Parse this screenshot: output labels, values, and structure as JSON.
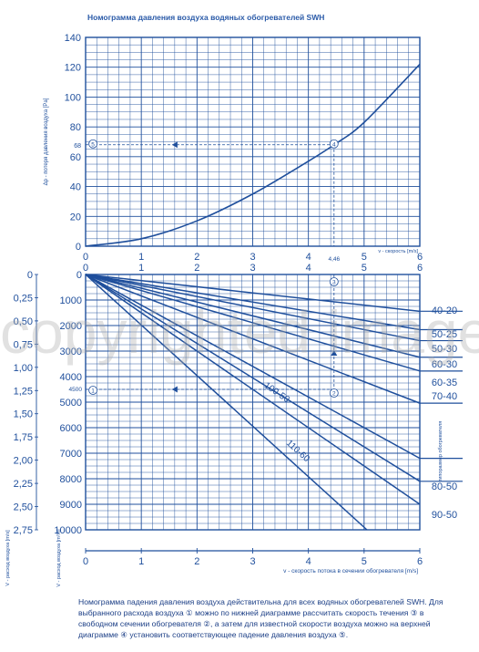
{
  "title": "Номограмма давления воздуха водяных обогревателей SWH",
  "watermark": "copyrighted image",
  "note": "Номограмма падения давления воздуха действительна для всех водяных обогревателей SWH. Для выбранного расхода воздуха ① можно по нижней диаграмме рассчитать скорость течения ③ в свободном сечении обогревателя ②, а затем для известной скорости воздуха можно на верхней диаграмме ④ установить соответствующее падение давления воздуха ⑤.",
  "colors": {
    "line": "#1f4f9c",
    "grid": "#1f4f9c",
    "text": "#1f4f9c",
    "watermark": "#aaaaaa"
  },
  "chart_data": [
    {
      "type": "line",
      "title": "Номограмма давления воздуха водяных обогревателей SWH",
      "xlabel": "v - скорость [m/s]",
      "ylabel": "Δp - потеря давления воздуха [Pa]",
      "xlim": [
        0,
        6
      ],
      "ylim": [
        0,
        140
      ],
      "x_ticks": [
        "0",
        "1",
        "2",
        "3",
        "4",
        "5",
        "6"
      ],
      "y_ticks": [
        "0",
        "20",
        "40",
        "60",
        "80",
        "100",
        "120",
        "140"
      ],
      "grid": true,
      "series": [
        {
          "x": [
            0,
            1,
            2,
            3,
            4,
            4.46,
            5,
            6
          ],
          "y": [
            0,
            5,
            17,
            35,
            57,
            68,
            83,
            122
          ]
        }
      ],
      "annotations": [
        {
          "text": "68",
          "kind": "y-reading",
          "value": 68
        },
        {
          "text": "4,46",
          "kind": "x-reading",
          "value": 4.46
        },
        {
          "text": "4",
          "kind": "marker",
          "x": 4.46,
          "y": 68
        },
        {
          "text": "5",
          "kind": "marker",
          "x": 0.1,
          "y": 68
        }
      ]
    },
    {
      "type": "line",
      "xlabel": "v - скорость потока в сечении обогревателя [m/s]",
      "ylabel": "V - расход воздуха [m³/h]",
      "ylabel2": "V - расход воздуха [m/s]",
      "xlim": [
        0,
        6
      ],
      "ylim": [
        0,
        10000
      ],
      "y_inverted": true,
      "x_ticks": [
        "0",
        "1",
        "2",
        "3",
        "4",
        "5",
        "6"
      ],
      "y_ticks": [
        "0",
        "1000",
        "2000",
        "3000",
        "4000",
        "5000",
        "6000",
        "7000",
        "8000",
        "9000",
        "10000"
      ],
      "y2_ticks": [
        "0",
        "0,25",
        "0,50",
        "0,75",
        "1,00",
        "1,25",
        "1,50",
        "1,75",
        "2,00",
        "2,25",
        "2,50",
        "2,75"
      ],
      "right_axis_label": "типоразмер обогревателя",
      "grid": true,
      "series": [
        {
          "name": "40-20",
          "x": [
            0,
            6
          ],
          "y": [
            0,
            1440
          ]
        },
        {
          "name": "50-25",
          "x": [
            0,
            6
          ],
          "y": [
            0,
            2160
          ]
        },
        {
          "name": "50-30",
          "x": [
            0,
            6
          ],
          "y": [
            0,
            2592
          ]
        },
        {
          "name": "60-30",
          "x": [
            0,
            6
          ],
          "y": [
            0,
            3240
          ]
        },
        {
          "name": "60-35",
          "x": [
            0,
            6
          ],
          "y": [
            0,
            3780
          ]
        },
        {
          "name": "70-40",
          "x": [
            0,
            6
          ],
          "y": [
            0,
            5040
          ]
        },
        {
          "name": "80-50",
          "x": [
            0,
            6
          ],
          "y": [
            0,
            7200
          ]
        },
        {
          "name": "90-50",
          "x": [
            0,
            6
          ],
          "y": [
            0,
            8100
          ]
        },
        {
          "name": "100-50",
          "x": [
            0,
            6
          ],
          "y": [
            0,
            9000
          ]
        },
        {
          "name": "110-60",
          "x": [
            0,
            6
          ],
          "y": [
            0,
            11880
          ]
        }
      ],
      "annotations": [
        {
          "text": "4500",
          "kind": "y-reading",
          "value": 4500
        },
        {
          "text": "1",
          "kind": "marker",
          "x": 0.1,
          "y": 4500
        },
        {
          "text": "2",
          "kind": "marker",
          "x": 4.46,
          "y": 4300
        },
        {
          "text": "3",
          "kind": "marker",
          "x": 4.46,
          "y": 250
        }
      ]
    }
  ]
}
